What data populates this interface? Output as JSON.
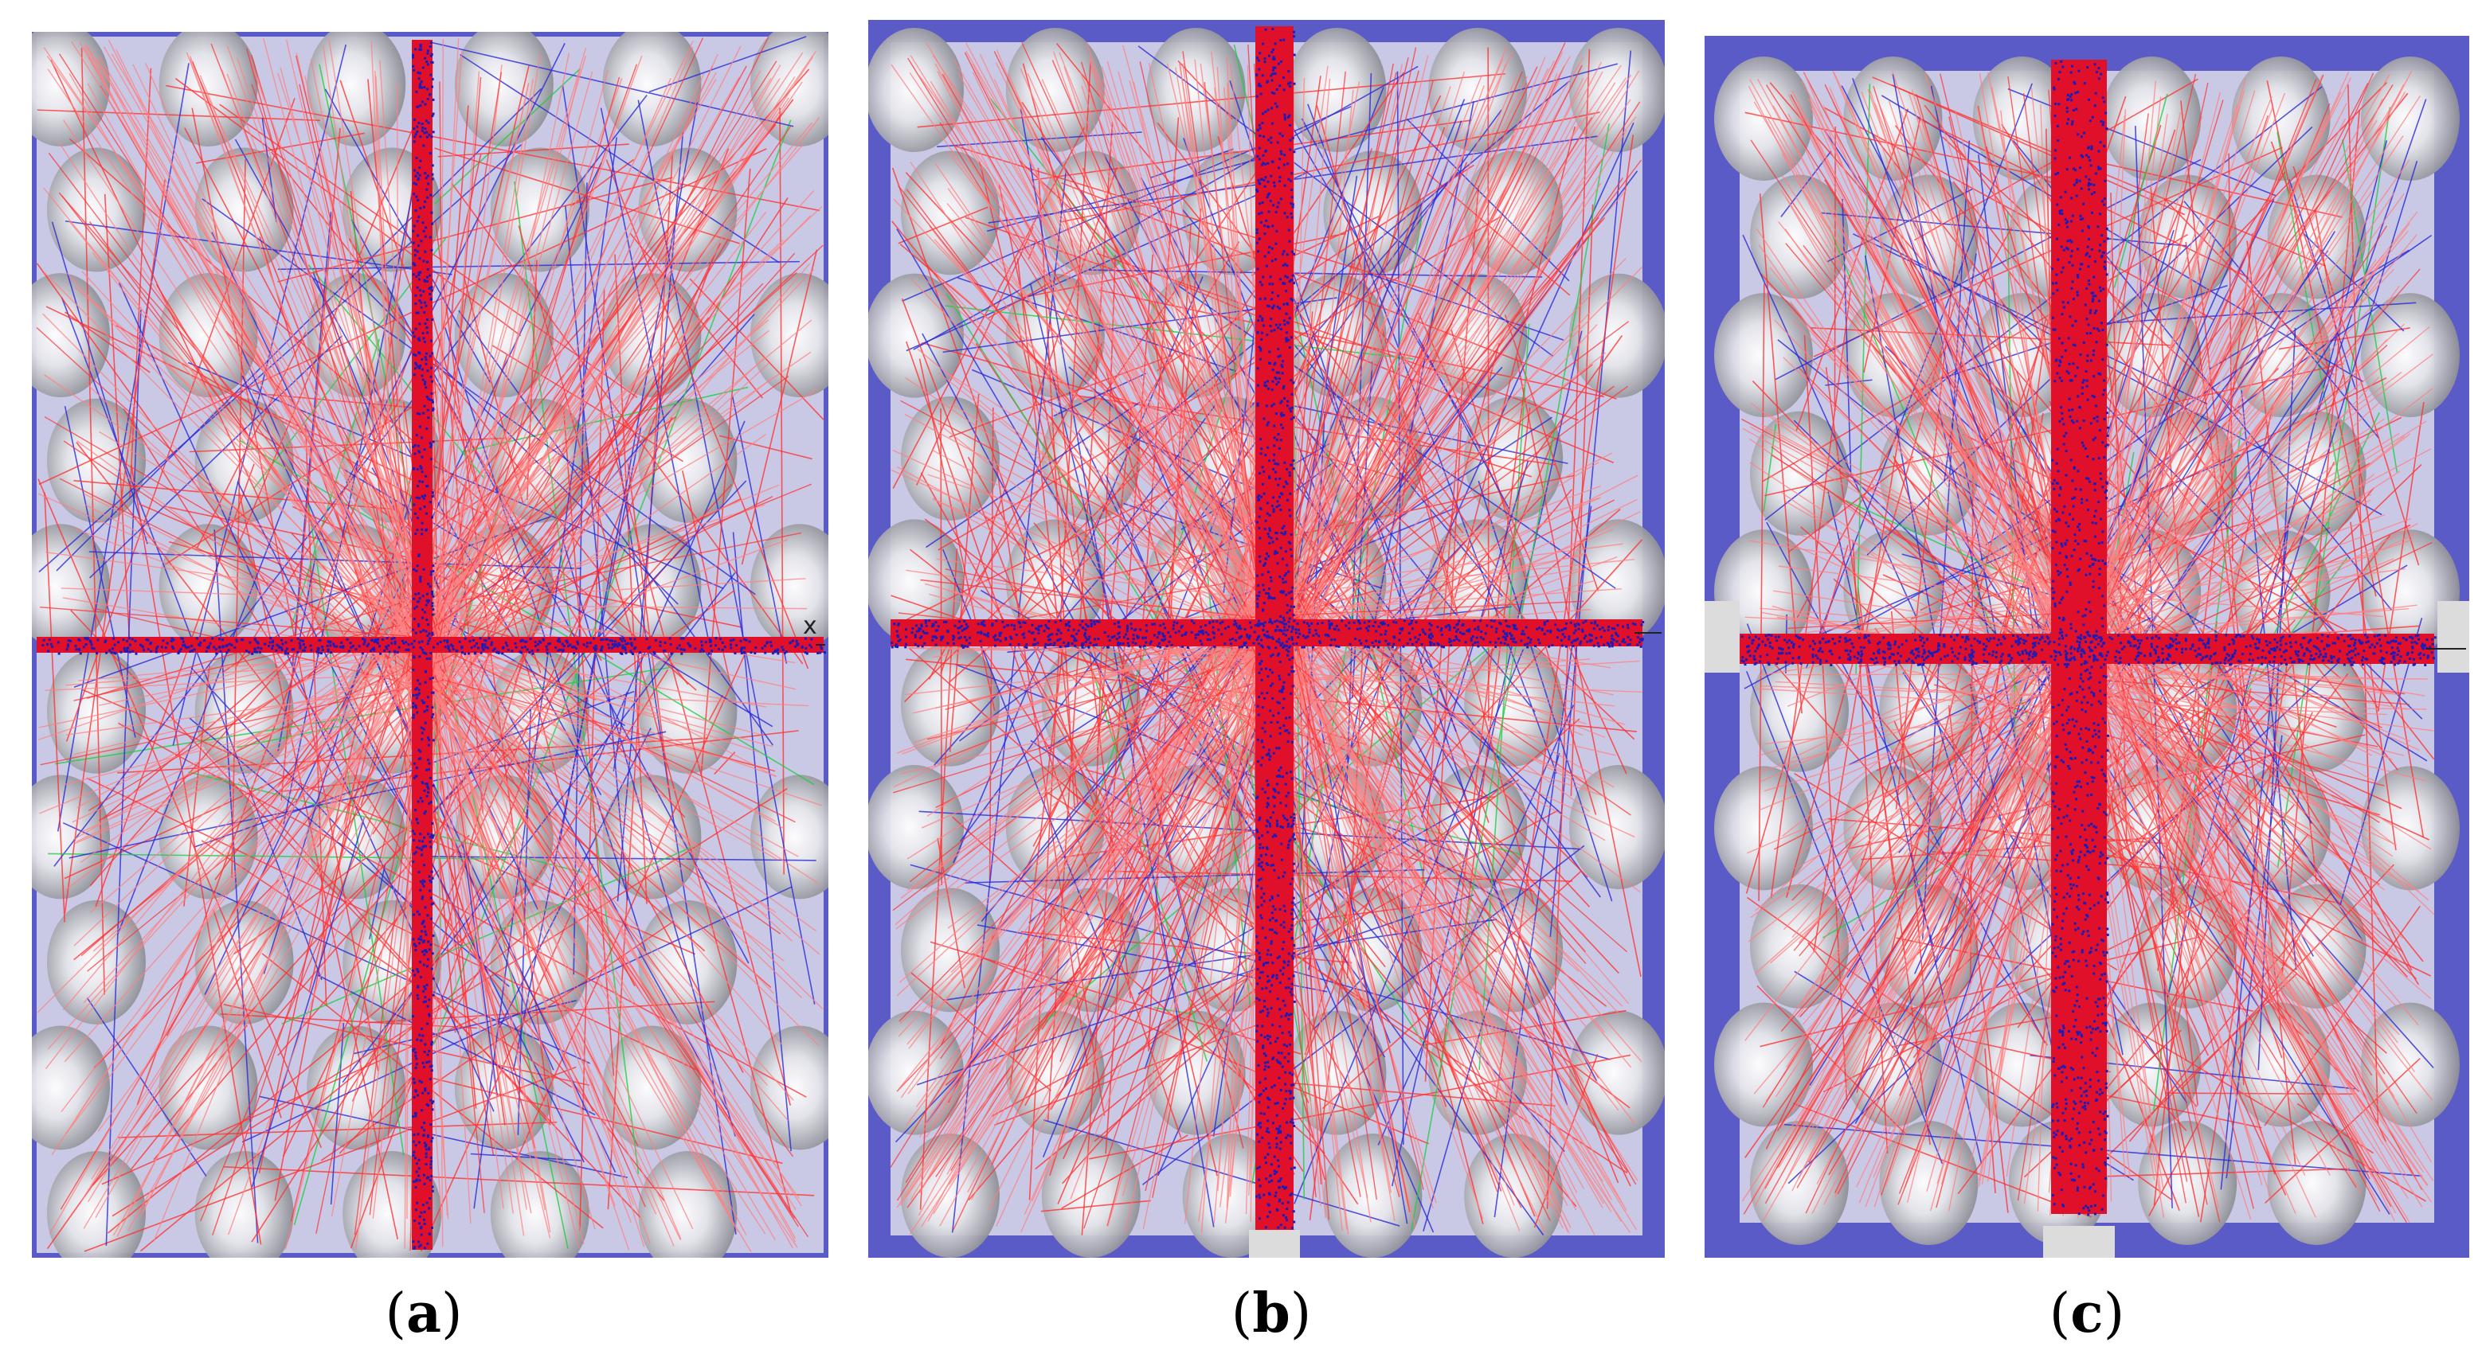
{
  "figure": {
    "panels": [
      {
        "id": "a",
        "label": "a",
        "open_paren": "(",
        "close_paren": ")",
        "axis_marker": "x"
      },
      {
        "id": "b",
        "label": "b",
        "open_paren": "(",
        "close_paren": ")",
        "axis_marker": ""
      },
      {
        "id": "c",
        "label": "c",
        "open_paren": "(",
        "close_paren": ")",
        "axis_marker": ""
      }
    ],
    "colors": {
      "frame": "#5b5bc8",
      "plate": "#c9c9e6",
      "ray_red": "#ff3333",
      "ray_pink": "#ff8080",
      "ray_blue": "#2a2ad6",
      "ray_green": "#22cc44",
      "channel_core": "#e0102a",
      "channel_blue": "#1c1cb8"
    }
  }
}
